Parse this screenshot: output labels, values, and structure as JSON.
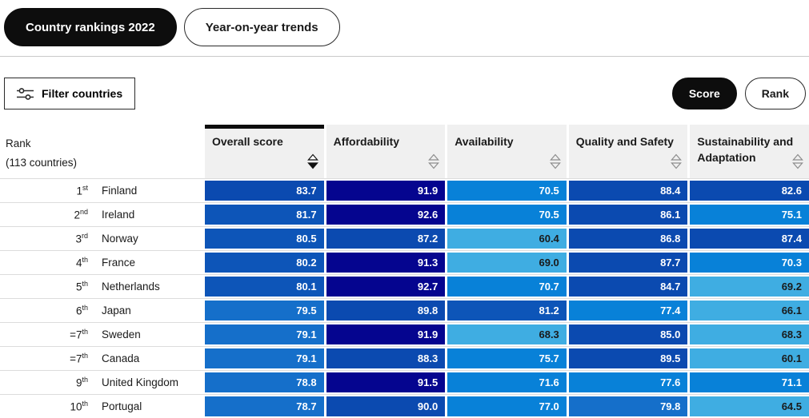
{
  "tabs": [
    {
      "label": "Country rankings 2022",
      "active": true
    },
    {
      "label": "Year-on-year trends",
      "active": false
    }
  ],
  "toolbar": {
    "filter_label": "Filter countries",
    "score_label": "Score",
    "rank_label": "Rank"
  },
  "table": {
    "rank_header_line1": "Rank",
    "rank_header_line2": "(113 countries)",
    "columns": [
      {
        "label": "Overall score",
        "sort": "desc"
      },
      {
        "label": "Affordability",
        "sort": "none"
      },
      {
        "label": "Availability",
        "sort": "none"
      },
      {
        "label": "Quality and Safety",
        "sort": "none"
      },
      {
        "label": "Sustainability and Adaptation",
        "sort": "none"
      }
    ],
    "rows": [
      {
        "rank": "1",
        "suffix": "st",
        "country": "Finland",
        "scores": [
          83.7,
          91.9,
          70.5,
          88.4,
          82.6
        ]
      },
      {
        "rank": "2",
        "suffix": "nd",
        "country": "Ireland",
        "scores": [
          81.7,
          92.6,
          70.5,
          86.1,
          75.1
        ]
      },
      {
        "rank": "3",
        "suffix": "rd",
        "country": "Norway",
        "scores": [
          80.5,
          87.2,
          60.4,
          86.8,
          87.4
        ]
      },
      {
        "rank": "4",
        "suffix": "th",
        "country": "France",
        "scores": [
          80.2,
          91.3,
          69.0,
          87.7,
          70.3
        ]
      },
      {
        "rank": "5",
        "suffix": "th",
        "country": "Netherlands",
        "scores": [
          80.1,
          92.7,
          70.7,
          84.7,
          69.2
        ]
      },
      {
        "rank": "6",
        "suffix": "th",
        "country": "Japan",
        "scores": [
          79.5,
          89.8,
          81.2,
          77.4,
          66.1
        ]
      },
      {
        "rank": "=7",
        "suffix": "th",
        "country": "Sweden",
        "scores": [
          79.1,
          91.9,
          68.3,
          85.0,
          68.3
        ]
      },
      {
        "rank": "=7",
        "suffix": "th",
        "country": "Canada",
        "scores": [
          79.1,
          88.3,
          75.7,
          89.5,
          60.1
        ]
      },
      {
        "rank": "9",
        "suffix": "th",
        "country": "United Kingdom",
        "scores": [
          78.8,
          91.5,
          71.6,
          77.6,
          71.1
        ]
      },
      {
        "rank": "10",
        "suffix": "th",
        "country": "Portugal",
        "scores": [
          78.7,
          90.0,
          77.0,
          79.8,
          64.5
        ]
      }
    ],
    "color_scale": [
      {
        "min": 91,
        "bg": "#05058f",
        "text": "#ffffff"
      },
      {
        "min": 82,
        "bg": "#0b4ab0",
        "text": "#ffffff"
      },
      {
        "min": 80,
        "bg": "#0d55b8",
        "text": "#ffffff"
      },
      {
        "min": 78,
        "bg": "#156fca",
        "text": "#ffffff"
      },
      {
        "min": 70,
        "bg": "#0881d8",
        "text": "#ffffff"
      },
      {
        "min": 0,
        "bg": "#3fade2",
        "text": "#1a1a1a"
      }
    ]
  }
}
